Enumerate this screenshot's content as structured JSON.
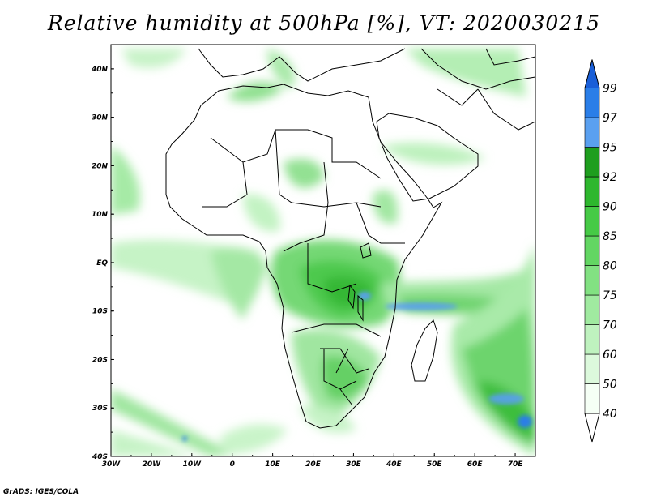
{
  "title": "Relative humidity at 500hPa [%], VT: 2020030215",
  "credit": "GrADS: IGES/COLA",
  "map": {
    "lon_range": [
      -30,
      75
    ],
    "lat_range": [
      -40,
      45
    ],
    "lon_ticks": [
      "30W",
      "20W",
      "10W",
      "0",
      "10E",
      "20E",
      "30E",
      "40E",
      "50E",
      "60E",
      "70E"
    ],
    "lat_ticks": [
      "40S",
      "30S",
      "20S",
      "10S",
      "EQ",
      "10N",
      "20N",
      "30N",
      "40N"
    ]
  },
  "colorbar": {
    "levels": [
      "40",
      "50",
      "60",
      "70",
      "75",
      "80",
      "85",
      "90",
      "92",
      "95",
      "97",
      "99"
    ],
    "colors": [
      "#f5fff5",
      "#dcf9dc",
      "#bff2bf",
      "#a0eaa0",
      "#82e182",
      "#63d663",
      "#46ca46",
      "#2eb72e",
      "#1e9e1e",
      "#5aa0f0",
      "#2a7ee8",
      "#1a5fd8"
    ]
  }
}
